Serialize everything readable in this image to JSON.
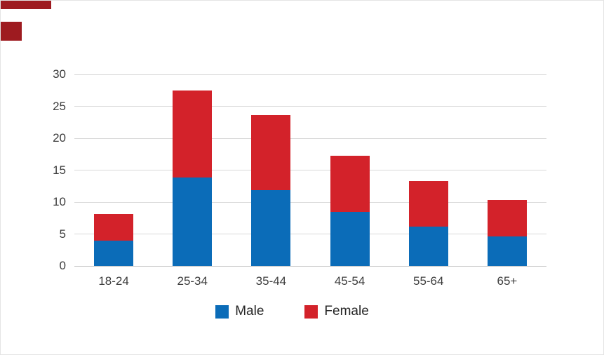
{
  "chart_data": {
    "type": "bar",
    "stacked": true,
    "title": "",
    "xlabel": "",
    "ylabel": "",
    "categories": [
      "18-24",
      "25-34",
      "35-44",
      "45-54",
      "55-64",
      "65+"
    ],
    "series": [
      {
        "name": "Male",
        "color": "#0b6cb8",
        "values": [
          4.0,
          13.9,
          11.9,
          8.5,
          6.2,
          4.6
        ]
      },
      {
        "name": "Female",
        "color": "#d3222a",
        "values": [
          4.1,
          13.6,
          11.7,
          8.8,
          7.1,
          5.7
        ]
      }
    ],
    "stack_totals": [
      8.1,
      27.5,
      23.6,
      17.3,
      13.3,
      10.3
    ],
    "ylim": [
      0,
      30
    ],
    "yticks": [
      0,
      5,
      10,
      15,
      20,
      25,
      30
    ],
    "grid": true,
    "legend_position": "bottom",
    "legend_labels": [
      "Male",
      "Female"
    ],
    "colors": {
      "gridline": "#d9d9d9",
      "axis_line": "#c2c2c2",
      "tick_text": "#3d3d3d",
      "background": "#ffffff"
    }
  },
  "decorations": {
    "top_bar_color": "#9e1b20",
    "left_block_color": "#9e1b20"
  }
}
